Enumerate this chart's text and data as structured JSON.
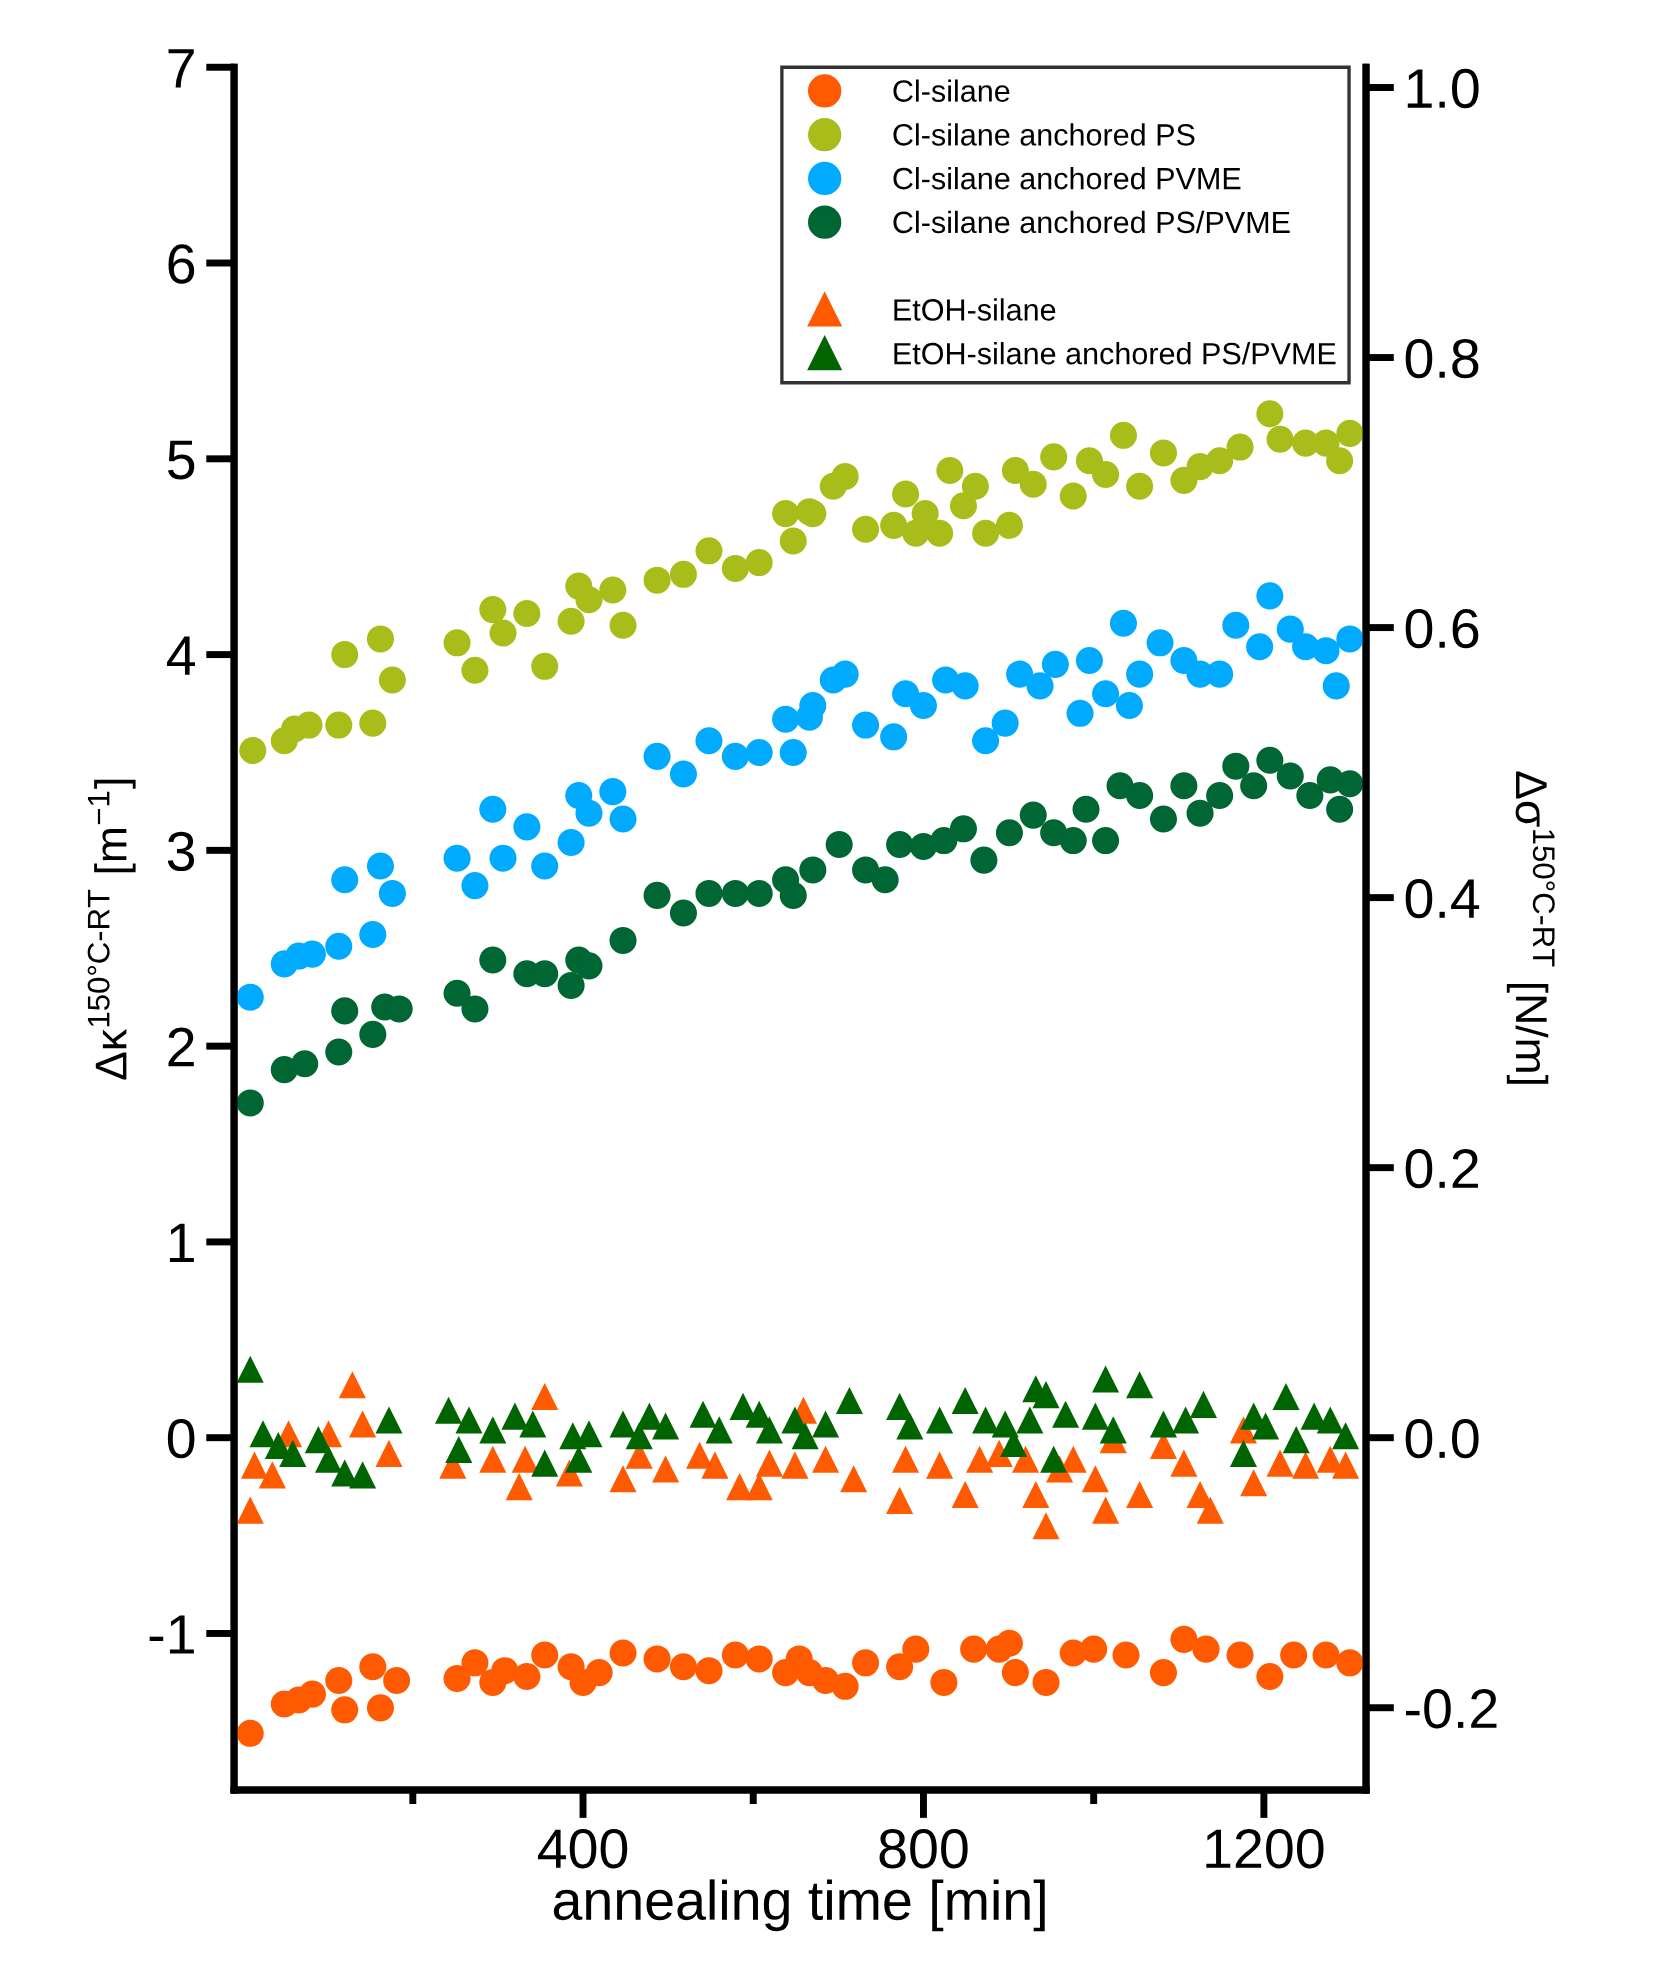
{
  "chart_data": {
    "type": "scatter",
    "xlabel": "annealing time [min]",
    "ylabel": "Δκ$^{150°C-RT}$ [m$^{−1}$]",
    "y2label": "Δσ$^{150°C-RT}$ [N/m]",
    "xlim": [
      -10,
      1320
    ],
    "xticks": [
      {
        "value": 200,
        "label": null
      },
      400,
      {
        "value": 600,
        "label": null
      },
      800,
      {
        "value": 1000,
        "label": null
      },
      1200
    ],
    "ylim": [
      -1.8,
      7
    ],
    "yticks": [
      -1,
      0,
      1,
      2,
      3,
      4,
      5,
      6,
      7
    ],
    "y2lim": [
      -0.261,
      1.015
    ],
    "y2ticks": [
      -0.2,
      {
        "value": 0.0,
        "label": "0.0"
      },
      0.2,
      0.4,
      0.6,
      0.8,
      {
        "value": 1.0,
        "label": "1.0"
      }
    ],
    "legend": "top right",
    "grid": false,
    "series": [
      {
        "name": "Cl-silane",
        "color": "#ff5a00",
        "marker": "circle",
        "x": [
          9,
          49,
          66,
          82,
          113,
          120,
          153,
          162,
          181,
          252,
          273,
          294,
          308,
          334,
          355,
          386,
          400,
          419,
          447,
          487,
          518,
          548,
          579,
          607,
          638,
          654,
          666,
          685,
          708,
          732,
          772,
          791,
          824,
          859,
          889,
          901,
          908,
          944,
          976,
          1000,
          1038,
          1082,
          1106,
          1132,
          1172,
          1207,
          1235,
          1273,
          1301
        ],
        "values": [
          -1.51,
          -1.36,
          -1.34,
          -1.31,
          -1.24,
          -1.39,
          -1.17,
          -1.38,
          -1.24,
          -1.23,
          -1.15,
          -1.25,
          -1.19,
          -1.22,
          -1.11,
          -1.17,
          -1.25,
          -1.2,
          -1.1,
          -1.13,
          -1.17,
          -1.19,
          -1.11,
          -1.13,
          -1.2,
          -1.13,
          -1.2,
          -1.24,
          -1.27,
          -1.15,
          -1.17,
          -1.08,
          -1.25,
          -1.08,
          -1.08,
          -1.05,
          -1.2,
          -1.25,
          -1.1,
          -1.08,
          -1.11,
          -1.2,
          -1.03,
          -1.08,
          -1.11,
          -1.22,
          -1.11,
          -1.11,
          -1.15
        ]
      },
      {
        "name": "Cl-silane anchored PS",
        "color": "#a8bd1a",
        "marker": "circle",
        "x": [
          12,
          49,
          61,
          78,
          113,
          120,
          153,
          162,
          176,
          252,
          273,
          294,
          306,
          334,
          355,
          386,
          395,
          407,
          435,
          447,
          487,
          518,
          548,
          579,
          607,
          638,
          647,
          666,
          670,
          694,
          708,
          732,
          765,
          779,
          791,
          802,
          819,
          831,
          847,
          861,
          873,
          901,
          908,
          929,
          953,
          976,
          995,
          1014,
          1035,
          1054,
          1082,
          1106,
          1125,
          1148,
          1172,
          1207,
          1219,
          1249,
          1273,
          1289,
          1301
        ],
        "values": [
          3.51,
          3.56,
          3.62,
          3.64,
          3.64,
          4.0,
          3.65,
          4.08,
          3.87,
          4.06,
          3.92,
          4.23,
          4.11,
          4.21,
          3.94,
          4.17,
          4.35,
          4.28,
          4.33,
          4.15,
          4.38,
          4.41,
          4.53,
          4.44,
          4.47,
          4.72,
          4.58,
          4.73,
          4.72,
          4.86,
          4.91,
          4.64,
          4.66,
          4.82,
          4.62,
          4.72,
          4.62,
          4.94,
          4.76,
          4.86,
          4.62,
          4.66,
          4.94,
          4.87,
          5.01,
          4.81,
          4.99,
          4.92,
          5.12,
          4.86,
          5.03,
          4.89,
          4.96,
          4.99,
          5.06,
          5.23,
          5.1,
          5.08,
          5.08,
          4.99,
          5.13
        ]
      },
      {
        "name": "Cl-silane anchored PVME",
        "color": "#00aaff",
        "marker": "circle",
        "x": [
          9,
          49,
          66,
          82,
          113,
          120,
          153,
          162,
          176,
          252,
          273,
          294,
          306,
          334,
          355,
          386,
          395,
          407,
          435,
          447,
          487,
          518,
          548,
          579,
          607,
          638,
          647,
          666,
          670,
          694,
          708,
          732,
          765,
          779,
          800,
          826,
          849,
          873,
          896,
          913,
          937,
          955,
          984,
          995,
          1014,
          1035,
          1042,
          1054,
          1078,
          1106,
          1125,
          1148,
          1167,
          1195,
          1207,
          1231,
          1249,
          1273,
          1285,
          1301
        ],
        "values": [
          2.25,
          2.42,
          2.46,
          2.47,
          2.51,
          2.85,
          2.57,
          2.92,
          2.78,
          2.96,
          2.82,
          3.21,
          2.96,
          3.12,
          2.92,
          3.04,
          3.28,
          3.19,
          3.3,
          3.16,
          3.48,
          3.39,
          3.56,
          3.48,
          3.5,
          3.67,
          3.5,
          3.68,
          3.74,
          3.87,
          3.9,
          3.64,
          3.58,
          3.8,
          3.74,
          3.87,
          3.84,
          3.56,
          3.65,
          3.9,
          3.84,
          3.95,
          3.7,
          3.97,
          3.8,
          4.16,
          3.74,
          3.9,
          4.06,
          3.97,
          3.9,
          3.9,
          4.15,
          4.04,
          4.3,
          4.13,
          4.04,
          4.02,
          3.84,
          4.08
        ]
      },
      {
        "name": "Cl-silane anchored PS/PVME",
        "color": "#006633",
        "marker": "circle",
        "x": [
          9,
          49,
          73,
          113,
          120,
          153,
          167,
          184,
          252,
          273,
          294,
          334,
          355,
          386,
          395,
          407,
          447,
          487,
          518,
          548,
          579,
          607,
          638,
          647,
          670,
          701,
          732,
          755,
          772,
          800,
          824,
          847,
          871,
          901,
          929,
          953,
          976,
          991,
          1014,
          1031,
          1054,
          1082,
          1106,
          1125,
          1148,
          1167,
          1188,
          1207,
          1231,
          1254,
          1278,
          1289,
          1301
        ],
        "values": [
          1.71,
          1.88,
          1.91,
          1.97,
          2.18,
          2.06,
          2.2,
          2.19,
          2.27,
          2.19,
          2.44,
          2.37,
          2.37,
          2.31,
          2.44,
          2.41,
          2.54,
          2.77,
          2.68,
          2.78,
          2.78,
          2.78,
          2.85,
          2.77,
          2.9,
          3.03,
          2.9,
          2.85,
          3.03,
          3.02,
          3.05,
          3.11,
          2.95,
          3.09,
          3.18,
          3.09,
          3.05,
          3.21,
          3.05,
          3.33,
          3.28,
          3.16,
          3.33,
          3.19,
          3.28,
          3.43,
          3.33,
          3.46,
          3.38,
          3.28,
          3.36,
          3.21,
          3.34
        ]
      },
      {
        "name": "EtOH-silane",
        "color": "#ff5a00",
        "marker": "triangle",
        "x": [
          9,
          14,
          35,
          54,
          101,
          129,
          141,
          172,
          247,
          294,
          325,
          332,
          355,
          384,
          402,
          447,
          466,
          497,
          537,
          555,
          584,
          607,
          619,
          649,
          659,
          685,
          718,
          772,
          779,
          819,
          849,
          866,
          889,
          920,
          932,
          944,
          960,
          976,
          1002,
          1014,
          1023,
          1054,
          1082,
          1106,
          1125,
          1137,
          1176,
          1188,
          1219,
          1249,
          1278,
          1296
        ],
        "values": [
          -0.37,
          -0.14,
          -0.19,
          0.02,
          0.02,
          0.27,
          0.07,
          -0.08,
          -0.14,
          -0.11,
          -0.25,
          -0.11,
          0.21,
          -0.18,
          null,
          -0.21,
          -0.09,
          -0.16,
          -0.09,
          -0.14,
          -0.25,
          -0.25,
          -0.13,
          -0.14,
          0.14,
          -0.11,
          -0.21,
          -0.32,
          -0.11,
          -0.14,
          -0.29,
          -0.11,
          -0.08,
          -0.11,
          -0.29,
          -0.45,
          -0.16,
          -0.11,
          -0.21,
          -0.37,
          -0.01,
          -0.29,
          -0.04,
          -0.13,
          -0.29,
          -0.37,
          0.04,
          -0.23,
          -0.13,
          -0.14,
          -0.11,
          -0.14
        ]
      },
      {
        "name": "EtOH-silane anchored PS/PVME",
        "color": "#006400",
        "marker": "triangle",
        "x": [
          9,
          24,
          42,
          59,
          89,
          101,
          120,
          141,
          172,
          242,
          254,
          266,
          294,
          320,
          341,
          355,
          388,
          395,
          407,
          447,
          466,
          478,
          497,
          541,
          560,
          588,
          607,
          619,
          649,
          661,
          685,
          713,
          772,
          784,
          819,
          849,
          873,
          896,
          906,
          925,
          932,
          944,
          953,
          967,
          1002,
          1014,
          1023,
          1054,
          1082,
          1108,
          1129,
          1176,
          1188,
          1202,
          1226,
          1238,
          1259,
          1278,
          1296
        ],
        "values": [
          0.35,
          0.02,
          -0.04,
          -0.08,
          -0.01,
          -0.11,
          -0.18,
          -0.19,
          0.09,
          0.14,
          -0.06,
          0.09,
          0.04,
          0.11,
          0.07,
          -0.13,
          0.01,
          -0.11,
          0.02,
          0.07,
          0.01,
          0.11,
          0.06,
          0.12,
          0.04,
          0.16,
          0.12,
          0.04,
          0.09,
          0.01,
          0.07,
          0.19,
          0.16,
          0.06,
          0.09,
          0.19,
          0.09,
          0.07,
          -0.03,
          0.09,
          0.25,
          0.22,
          -0.11,
          0.12,
          0.11,
          0.3,
          0.04,
          0.27,
          0.07,
          0.09,
          0.17,
          -0.08,
          0.11,
          0.06,
          0.21,
          -0.01,
          0.11,
          0.09,
          0.01
        ]
      }
    ]
  }
}
